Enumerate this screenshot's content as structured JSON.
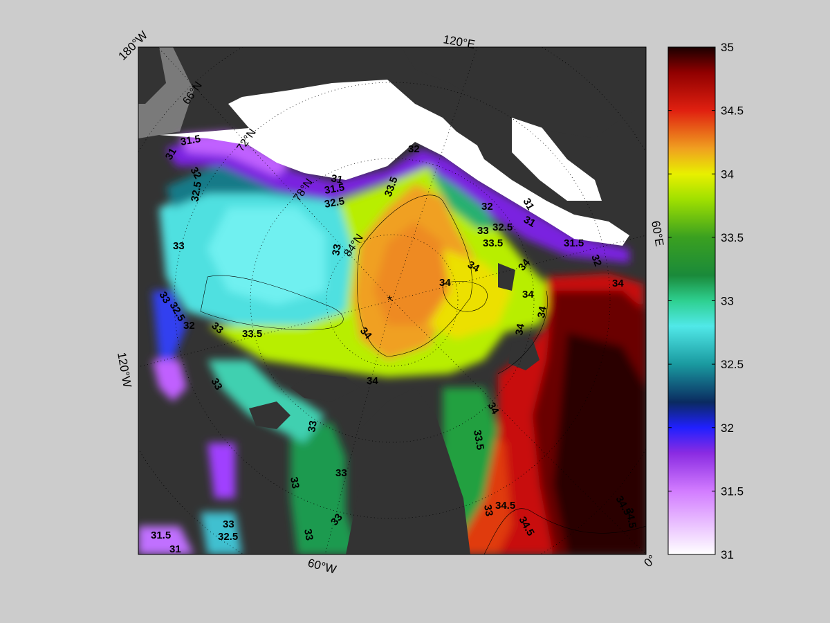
{
  "map": {
    "lon_labels": [
      "180°W",
      "120°E",
      "60°E",
      "0°",
      "60°W",
      "120°W"
    ],
    "lat_labels": [
      "66°N",
      "72°N",
      "78°N",
      "84°N"
    ],
    "contour_labels": [
      "31",
      "31.5",
      "32",
      "32.5",
      "33",
      "33.5",
      "34",
      "34.5"
    ],
    "center_marker": "*"
  },
  "colorbar": {
    "ticks": [
      "35",
      "34.5",
      "34",
      "33.5",
      "33",
      "32.5",
      "32",
      "31.5",
      "31"
    ],
    "min": 31,
    "max": 35,
    "stops": [
      {
        "value": 31.0,
        "color": "#ffffff"
      },
      {
        "value": 31.5,
        "color": "#d27cff"
      },
      {
        "value": 31.8,
        "color": "#8a2be2"
      },
      {
        "value": 32.0,
        "color": "#2020ff"
      },
      {
        "value": 32.2,
        "color": "#0a2a60"
      },
      {
        "value": 32.5,
        "color": "#1a9aa0"
      },
      {
        "value": 32.8,
        "color": "#50e8e8"
      },
      {
        "value": 33.0,
        "color": "#2ed090"
      },
      {
        "value": 33.2,
        "color": "#1a8a3a"
      },
      {
        "value": 33.5,
        "color": "#3aa020"
      },
      {
        "value": 33.8,
        "color": "#a0e000"
      },
      {
        "value": 34.0,
        "color": "#e8f000"
      },
      {
        "value": 34.2,
        "color": "#f0a020"
      },
      {
        "value": 34.5,
        "color": "#e02010"
      },
      {
        "value": 34.8,
        "color": "#900000"
      },
      {
        "value": 35.0,
        "color": "#1a0000"
      }
    ]
  },
  "colors": {
    "land": "#333333",
    "ice": "#ffffff",
    "background": "#cccccc",
    "outside": "#888888"
  }
}
